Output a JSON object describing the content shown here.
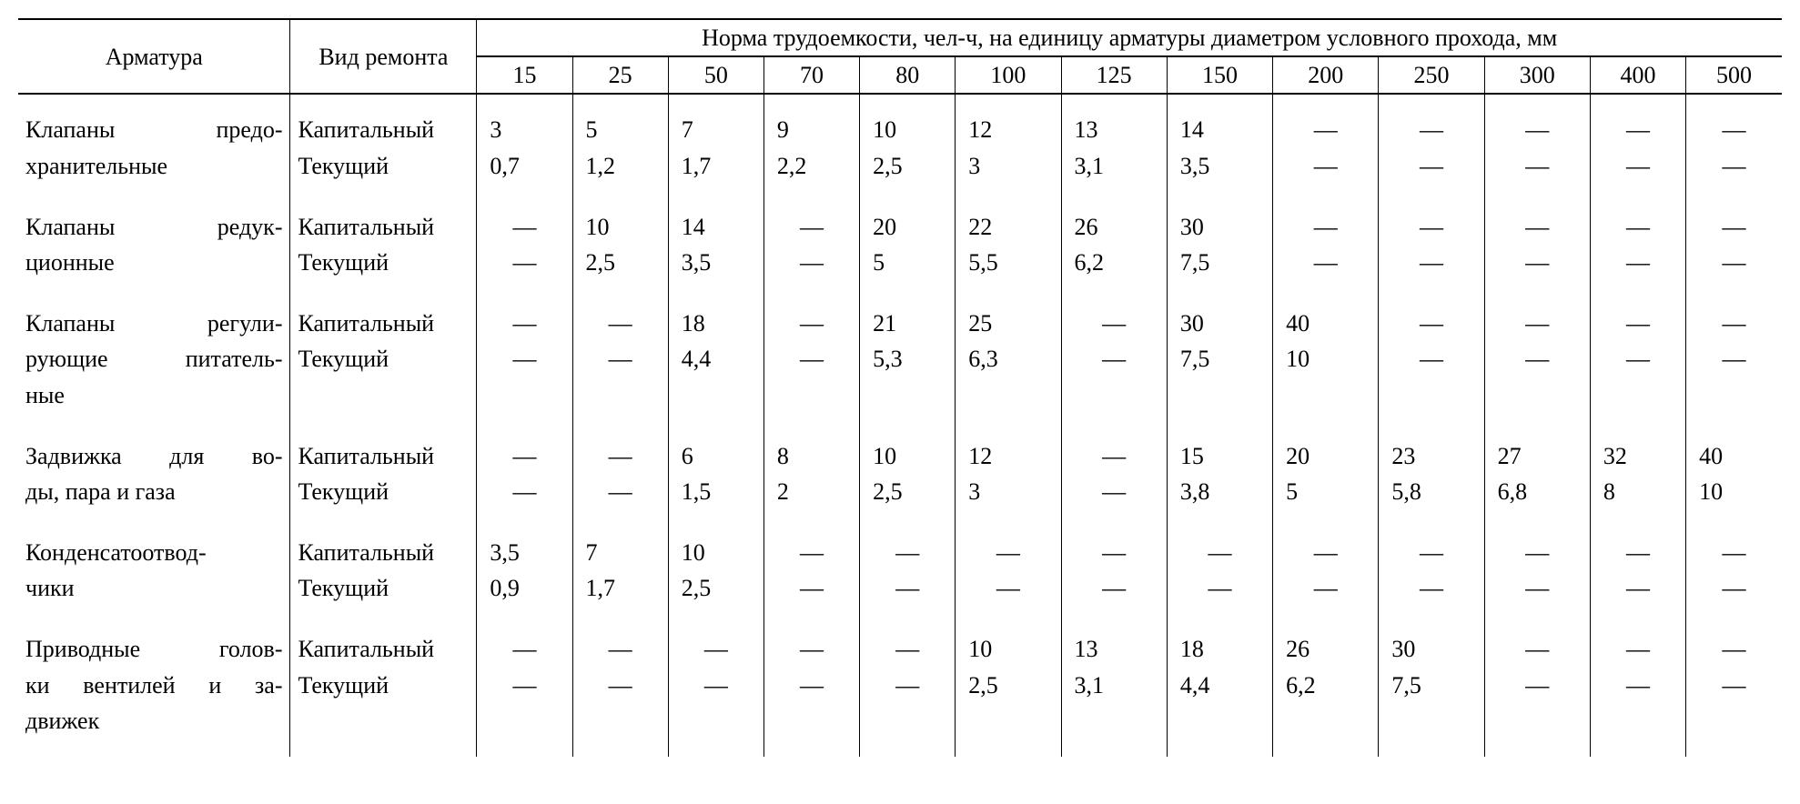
{
  "table": {
    "columns": {
      "armature_label": "Арматура",
      "repair_label": "Вид ремонта",
      "spanning_header": "Норма трудоемкости, чел-ч, на единицу арматуры диаметром условного прохода, мм",
      "diameters": [
        "15",
        "25",
        "50",
        "70",
        "80",
        "100",
        "125",
        "150",
        "200",
        "250",
        "300",
        "400",
        "500"
      ]
    },
    "repair_types": {
      "capital": "Капитальный",
      "current": "Текущий"
    },
    "groups": [
      {
        "name_lines": [
          "Клапаны предо-",
          "хранительные"
        ],
        "rows": [
          {
            "values": [
              "3",
              "5",
              "7",
              "9",
              "10",
              "12",
              "13",
              "14",
              "—",
              "—",
              "—",
              "—",
              "—"
            ]
          },
          {
            "values": [
              "0,7",
              "1,2",
              "1,7",
              "2,2",
              "2,5",
              "3",
              "3,1",
              "3,5",
              "—",
              "—",
              "—",
              "—",
              "—"
            ]
          }
        ]
      },
      {
        "name_lines": [
          "Клапаны редук-",
          "ционные"
        ],
        "rows": [
          {
            "values": [
              "—",
              "10",
              "14",
              "—",
              "20",
              "22",
              "26",
              "30",
              "—",
              "—",
              "—",
              "—",
              "—"
            ]
          },
          {
            "values": [
              "—",
              "2,5",
              "3,5",
              "—",
              "5",
              "5,5",
              "6,2",
              "7,5",
              "—",
              "—",
              "—",
              "—",
              "—"
            ]
          }
        ]
      },
      {
        "name_lines": [
          "Клапаны регули-",
          "рующие питатель-",
          "ные"
        ],
        "rows": [
          {
            "values": [
              "—",
              "—",
              "18",
              "—",
              "21",
              "25",
              "—",
              "30",
              "40",
              "—",
              "—",
              "—",
              "—"
            ]
          },
          {
            "values": [
              "—",
              "—",
              "4,4",
              "—",
              "5,3",
              "6,3",
              "—",
              "7,5",
              "10",
              "—",
              "—",
              "—",
              "—"
            ]
          }
        ]
      },
      {
        "name_lines": [
          "Задвижка для во-",
          "ды, пара и газа"
        ],
        "rows": [
          {
            "values": [
              "—",
              "—",
              "6",
              "8",
              "10",
              "12",
              "—",
              "15",
              "20",
              "23",
              "27",
              "32",
              "40"
            ]
          },
          {
            "values": [
              "—",
              "—",
              "1,5",
              "2",
              "2,5",
              "3",
              "—",
              "3,8",
              "5",
              "5,8",
              "6,8",
              "8",
              "10"
            ]
          }
        ]
      },
      {
        "name_lines": [
          "Конденсатоотвод-",
          "чики"
        ],
        "rows": [
          {
            "values": [
              "3,5",
              "7",
              "10",
              "—",
              "—",
              "—",
              "—",
              "—",
              "—",
              "—",
              "—",
              "—",
              "—"
            ]
          },
          {
            "values": [
              "0,9",
              "1,7",
              "2,5",
              "—",
              "—",
              "—",
              "—",
              "—",
              "—",
              "—",
              "—",
              "—",
              "—"
            ]
          }
        ]
      },
      {
        "name_lines": [
          "Приводные голов-",
          "ки вентилей и за-",
          "движек"
        ],
        "rows": [
          {
            "values": [
              "—",
              "—",
              "—",
              "—",
              "—",
              "10",
              "13",
              "18",
              "26",
              "30",
              "—",
              "—",
              "—"
            ]
          },
          {
            "values": [
              "—",
              "—",
              "—",
              "—",
              "—",
              "2,5",
              "3,1",
              "4,4",
              "6,2",
              "7,5",
              "—",
              "—",
              "—"
            ]
          }
        ]
      }
    ]
  }
}
